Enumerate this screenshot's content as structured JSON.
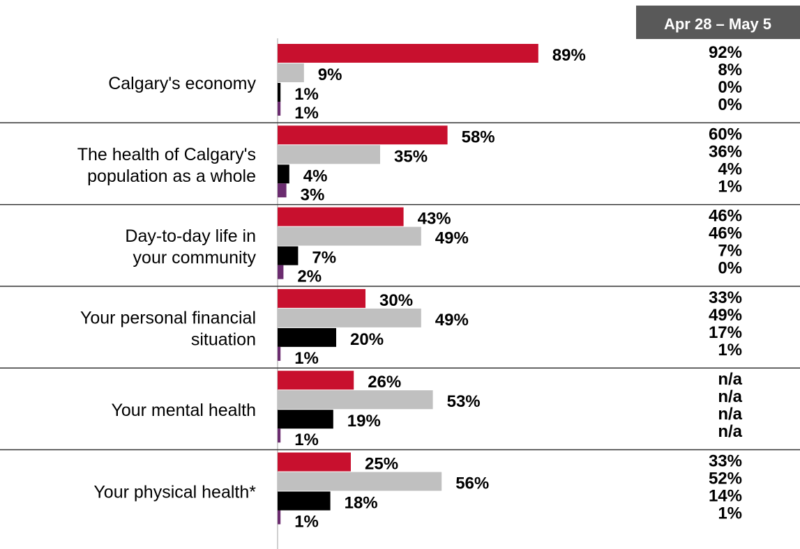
{
  "colors": {
    "series": [
      "#c8102e",
      "#c0c0c0",
      "#000000",
      "#6b2c6f"
    ],
    "header_bg": "#595959",
    "divider": "#333333",
    "axis": "#bfbfbf"
  },
  "comparison_header": "Apr 28 – May 5",
  "chart_data": {
    "type": "bar",
    "orientation": "horizontal",
    "categories": [
      [
        "Calgary's economy"
      ],
      [
        "The health of Calgary's",
        "population as a whole"
      ],
      [
        "Day-to-day life in",
        "your community"
      ],
      [
        "Your personal financial",
        "situation"
      ],
      [
        "Your mental health"
      ],
      [
        "Your physical health*"
      ]
    ],
    "series": [
      {
        "values": [
          89,
          58,
          43,
          30,
          26,
          25
        ]
      },
      {
        "values": [
          9,
          35,
          49,
          49,
          53,
          56
        ]
      },
      {
        "values": [
          1,
          4,
          7,
          20,
          19,
          18
        ]
      },
      {
        "values": [
          1,
          3,
          2,
          1,
          1,
          1
        ]
      }
    ],
    "value_suffix": "%",
    "xlim": [
      0,
      100
    ],
    "comparison": {
      "label": "Apr 28 – May 5",
      "values": [
        [
          "92%",
          "8%",
          "0%",
          "0%"
        ],
        [
          "60%",
          "36%",
          "4%",
          "1%"
        ],
        [
          "46%",
          "46%",
          "7%",
          "0%"
        ],
        [
          "33%",
          "49%",
          "17%",
          "1%"
        ],
        [
          "n/a",
          "n/a",
          "n/a",
          "n/a"
        ],
        [
          "33%",
          "52%",
          "14%",
          "1%"
        ]
      ]
    }
  }
}
